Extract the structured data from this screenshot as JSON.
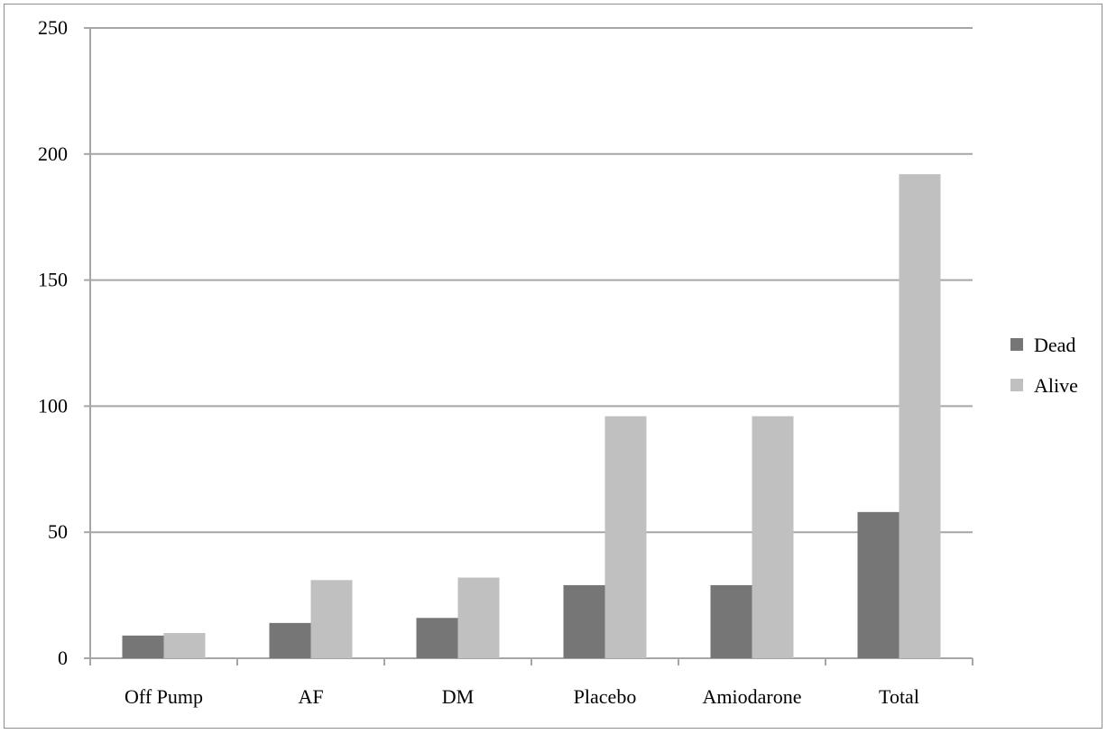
{
  "chart_data": {
    "type": "bar",
    "categories": [
      "Off Pump",
      "AF",
      "DM",
      "Placebo",
      "Amiodarone",
      "Total"
    ],
    "series": [
      {
        "name": "Dead",
        "color": "#767676",
        "values": [
          9,
          14,
          16,
          29,
          29,
          58
        ]
      },
      {
        "name": "Alive",
        "color": "#c0c0c0",
        "values": [
          10,
          31,
          32,
          96,
          96,
          192
        ]
      }
    ],
    "ylim": [
      0,
      250
    ],
    "yticks": [
      0,
      50,
      100,
      150,
      200,
      250
    ],
    "grid": true,
    "legend_position": "right",
    "title": "",
    "xlabel": "",
    "ylabel": ""
  }
}
